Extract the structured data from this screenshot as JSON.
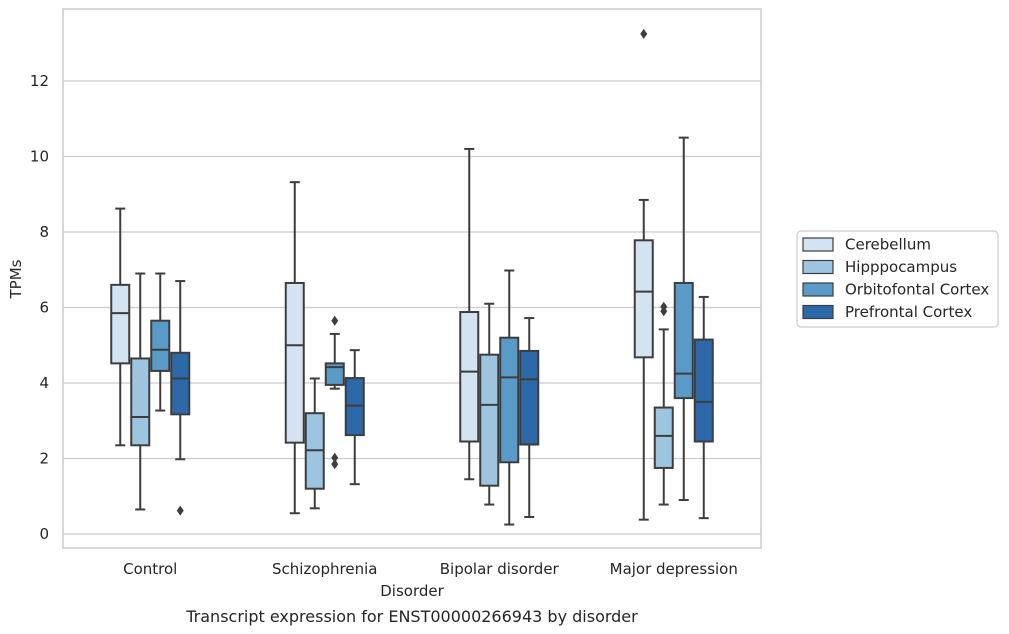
{
  "chart_data": {
    "type": "box",
    "xlabel": "Disorder",
    "ylabel": "TPMs",
    "caption": "Transcript expression for ENST00000266943 by disorder",
    "ylim": [
      -0.4,
      14
    ],
    "yticks": [
      0,
      2,
      4,
      6,
      8,
      10,
      12
    ],
    "grid": "horizontal",
    "legend_position": "right",
    "categories": [
      "Control",
      "Schizophrenia",
      "Bipolar disorder",
      "Major depression"
    ],
    "series": [
      {
        "name": "Cerebellum",
        "color": "#d3e3f2",
        "boxes": [
          {
            "whisker_low": 2.35,
            "q1": 4.52,
            "median": 5.85,
            "q3": 6.6,
            "whisker_high": 8.62,
            "outliers": []
          },
          {
            "whisker_low": 0.55,
            "q1": 2.42,
            "median": 5.0,
            "q3": 6.65,
            "whisker_high": 9.32,
            "outliers": []
          },
          {
            "whisker_low": 1.45,
            "q1": 2.45,
            "median": 4.3,
            "q3": 5.88,
            "whisker_high": 10.2,
            "outliers": []
          },
          {
            "whisker_low": 0.38,
            "q1": 4.68,
            "median": 6.42,
            "q3": 7.78,
            "whisker_high": 8.85,
            "outliers": [
              13.25
            ]
          }
        ]
      },
      {
        "name": "Hipppocampus",
        "color": "#9dc5df",
        "boxes": [
          {
            "whisker_low": 0.65,
            "q1": 2.35,
            "median": 3.1,
            "q3": 4.65,
            "whisker_high": 6.9,
            "outliers": []
          },
          {
            "whisker_low": 0.68,
            "q1": 1.2,
            "median": 2.22,
            "q3": 3.2,
            "whisker_high": 4.12,
            "outliers": []
          },
          {
            "whisker_low": 0.78,
            "q1": 1.28,
            "median": 3.42,
            "q3": 4.75,
            "whisker_high": 6.1,
            "outliers": []
          },
          {
            "whisker_low": 0.78,
            "q1": 1.75,
            "median": 2.6,
            "q3": 3.35,
            "whisker_high": 5.42,
            "outliers": [
              5.9,
              6.02
            ]
          }
        ]
      },
      {
        "name": "Orbitofontal Cortex",
        "color": "#5a9ac8",
        "boxes": [
          {
            "whisker_low": 3.27,
            "q1": 4.32,
            "median": 4.88,
            "q3": 5.65,
            "whisker_high": 6.9,
            "outliers": []
          },
          {
            "whisker_low": 3.85,
            "q1": 3.95,
            "median": 4.42,
            "q3": 4.52,
            "whisker_high": 5.3,
            "outliers": [
              5.65,
              1.85,
              2.02
            ]
          },
          {
            "whisker_low": 0.25,
            "q1": 1.9,
            "median": 4.15,
            "q3": 5.2,
            "whisker_high": 6.98,
            "outliers": []
          },
          {
            "whisker_low": 0.9,
            "q1": 3.6,
            "median": 4.25,
            "q3": 6.65,
            "whisker_high": 10.5,
            "outliers": []
          }
        ]
      },
      {
        "name": "Prefrontal Cortex",
        "color": "#2d69a8",
        "boxes": [
          {
            "whisker_low": 1.98,
            "q1": 3.17,
            "median": 4.12,
            "q3": 4.8,
            "whisker_high": 6.7,
            "outliers": [
              0.62
            ]
          },
          {
            "whisker_low": 1.32,
            "q1": 2.62,
            "median": 3.4,
            "q3": 4.13,
            "whisker_high": 4.87,
            "outliers": []
          },
          {
            "whisker_low": 0.45,
            "q1": 2.37,
            "median": 4.1,
            "q3": 4.85,
            "whisker_high": 5.72,
            "outliers": []
          },
          {
            "whisker_low": 0.42,
            "q1": 2.45,
            "median": 3.5,
            "q3": 5.15,
            "whisker_high": 6.28,
            "outliers": []
          }
        ]
      }
    ]
  }
}
